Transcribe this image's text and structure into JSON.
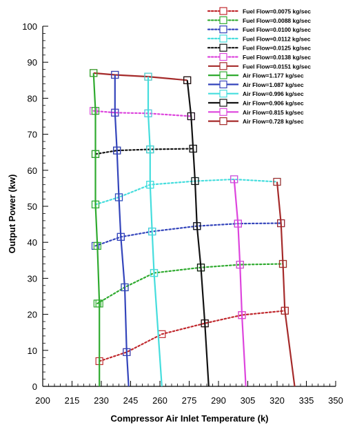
{
  "chart_data": {
    "type": "line",
    "xlabel": "Compressor Air Inlet Temperature (k)",
    "ylabel": "Output Power (kw)",
    "xlim": [
      200,
      350
    ],
    "ylim": [
      0,
      100
    ],
    "xticks": [
      "200",
      "215",
      "230",
      "245",
      "260",
      "275",
      "290",
      "305",
      "320",
      "335",
      "350"
    ],
    "yticks": [
      "0",
      "10",
      "20",
      "30",
      "40",
      "50",
      "60",
      "70",
      "80",
      "90",
      "100"
    ],
    "legend_position": "top-right",
    "series": [
      {
        "name": "Fuel Flow=0.0075 kg/sec",
        "color": "#c0282d",
        "style": "dotted",
        "x": [
          229,
          243,
          261,
          283,
          302,
          324
        ],
        "y": [
          7,
          9.5,
          14.5,
          17.5,
          19.8,
          21
        ]
      },
      {
        "name": "Fuel Flow=0.0088 kg/sec",
        "color": "#2eaa2e",
        "style": "dotted",
        "x": [
          228,
          242,
          257,
          281,
          301,
          323
        ],
        "y": [
          23,
          27.5,
          31.5,
          33,
          33.8,
          34
        ]
      },
      {
        "name": "Fuel Flow=0.0100 kg/sec",
        "color": "#3344bb",
        "style": "dotted",
        "x": [
          227,
          240,
          256,
          279,
          300,
          322
        ],
        "y": [
          39,
          41.5,
          43,
          44.5,
          45.2,
          45.3
        ]
      },
      {
        "name": "Fuel Flow=0.0112 kg/sec",
        "color": "#44dddd",
        "style": "dotted",
        "x": [
          227,
          239,
          255,
          278,
          298,
          320
        ],
        "y": [
          50.5,
          52.5,
          56,
          57,
          57.5,
          56.8
        ]
      },
      {
        "name": "Fuel Flow=0.0125 kg/sec",
        "color": "#111111",
        "style": "dotted",
        "x": [
          227,
          238,
          255,
          277
        ],
        "y": [
          64.5,
          65.5,
          65.8,
          66
        ]
      },
      {
        "name": "Fuel Flow=0.0138 kg/sec",
        "color": "#dd44dd",
        "style": "dotted",
        "x": [
          226,
          237,
          254,
          276
        ],
        "y": [
          76.5,
          76,
          75.8,
          75
        ]
      },
      {
        "name": "Fuel Flow=0.0151 kg/sec",
        "color": "#a52a2a",
        "style": "solid",
        "x": [
          226,
          237,
          254,
          274
        ],
        "y": [
          87,
          86.5,
          86,
          85
        ]
      },
      {
        "name": "Air Flow=1.177 kg/sec",
        "color": "#2eaa2e",
        "style": "solid",
        "x": [
          226,
          227,
          227,
          227,
          228,
          229,
          229
        ],
        "y": [
          87,
          76.5,
          64.5,
          50.5,
          39,
          23,
          0
        ]
      },
      {
        "name": "Air Flow=1.087 kg/sec",
        "color": "#3344bb",
        "style": "solid",
        "x": [
          237,
          237,
          238,
          239,
          240,
          242,
          243,
          244
        ],
        "y": [
          86.5,
          76,
          65.5,
          52.5,
          41.5,
          27.5,
          9.5,
          0
        ]
      },
      {
        "name": "Air Flow=0.996 kg/sec",
        "color": "#44dddd",
        "style": "solid",
        "x": [
          254,
          254,
          255,
          255,
          256,
          257,
          261
        ],
        "y": [
          86,
          75.8,
          65.8,
          56,
          43,
          31.5,
          0
        ]
      },
      {
        "name": "Air Flow=0.906 kg/sec",
        "color": "#111111",
        "style": "solid",
        "x": [
          274,
          276,
          277,
          278,
          279,
          281,
          283,
          285
        ],
        "y": [
          85,
          75,
          66,
          57,
          44.5,
          33,
          17.5,
          0
        ]
      },
      {
        "name": "Air Flow=0.815 kg/sec",
        "color": "#dd44dd",
        "style": "solid",
        "x": [
          298,
          300,
          301,
          302,
          304
        ],
        "y": [
          57.5,
          45.2,
          33.8,
          19.8,
          0
        ]
      },
      {
        "name": "Air Flow=0.728 kg/sec",
        "color": "#a52a2a",
        "style": "solid",
        "x": [
          320,
          322,
          323,
          324,
          329
        ],
        "y": [
          56.8,
          45.3,
          34,
          21,
          0
        ]
      }
    ]
  }
}
